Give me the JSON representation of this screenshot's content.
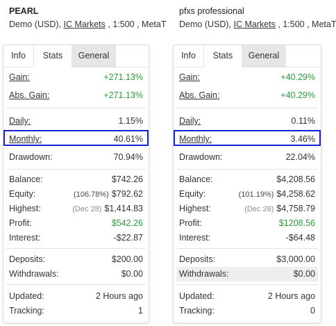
{
  "panels": [
    {
      "title": "PEARL",
      "subtitle": {
        "prefix": "Demo (USD), ",
        "broker": "IC Markets",
        "suffix": " , 1:500 , MetaT"
      },
      "tabs": [
        "Info",
        "Stats",
        "General"
      ],
      "stats": {
        "gain": {
          "label": "Gain:",
          "value": "+271.13%"
        },
        "abs_gain": {
          "label": "Abs. Gain:",
          "value": "+271.13%"
        },
        "daily": {
          "label": "Daily:",
          "value": "1.15%"
        },
        "monthly": {
          "label": "Monthly:",
          "value": "40.61%"
        },
        "drawdown": {
          "label": "Drawdown:",
          "value": "70.94%"
        },
        "balance": {
          "label": "Balance:",
          "value": "$742.26"
        },
        "equity": {
          "label": "Equity:",
          "pct": "(106.78%)",
          "value": "$792.62"
        },
        "highest": {
          "label": "Highest:",
          "date": "(Dec 28)",
          "value": "$1,414.83"
        },
        "profit": {
          "label": "Profit:",
          "value": "$542.26"
        },
        "interest": {
          "label": "Interest:",
          "value": "-$22.87"
        },
        "deposits": {
          "label": "Deposits:",
          "value": "$200.00"
        },
        "withdrawals": {
          "label": "Withdrawals:",
          "value": "$0.00"
        },
        "updated": {
          "label": "Updated:",
          "value": "2 Hours ago"
        },
        "tracking": {
          "label": "Tracking:",
          "value": "1"
        }
      }
    },
    {
      "title": "pfxs professional",
      "subtitle": {
        "prefix": "Demo (USD), ",
        "broker": "IC Markets",
        "suffix": " , 1:500 , MetaT"
      },
      "tabs": [
        "Info",
        "Stats",
        "General"
      ],
      "stats": {
        "gain": {
          "label": "Gain:",
          "value": "+40.29%"
        },
        "abs_gain": {
          "label": "Abs. Gain:",
          "value": "+40.29%"
        },
        "daily": {
          "label": "Daily:",
          "value": "0.11%"
        },
        "monthly": {
          "label": "Monthly:",
          "value": "3.46%"
        },
        "drawdown": {
          "label": "Drawdown:",
          "value": "22.04%"
        },
        "balance": {
          "label": "Balance:",
          "value": "$4,208.56"
        },
        "equity": {
          "label": "Equity:",
          "pct": "(101.19%)",
          "value": "$4,258.62"
        },
        "highest": {
          "label": "Highest:",
          "date": "(Dec 28)",
          "value": "$4,758.79"
        },
        "profit": {
          "label": "Profit:",
          "value": "$1208.56"
        },
        "interest": {
          "label": "Interest:",
          "value": "-$64.48"
        },
        "deposits": {
          "label": "Deposits:",
          "value": "$3,000.00"
        },
        "withdrawals": {
          "label": "Withdrawals:",
          "value": "$0.00"
        },
        "updated": {
          "label": "Updated:",
          "value": "2 Hours ago"
        },
        "tracking": {
          "label": "Tracking:",
          "value": "0"
        }
      }
    }
  ],
  "colors": {
    "positive": "#2f9a3e",
    "highlight_box": "#1621d6",
    "tab_inactive_bg": "#e6e6e6"
  }
}
